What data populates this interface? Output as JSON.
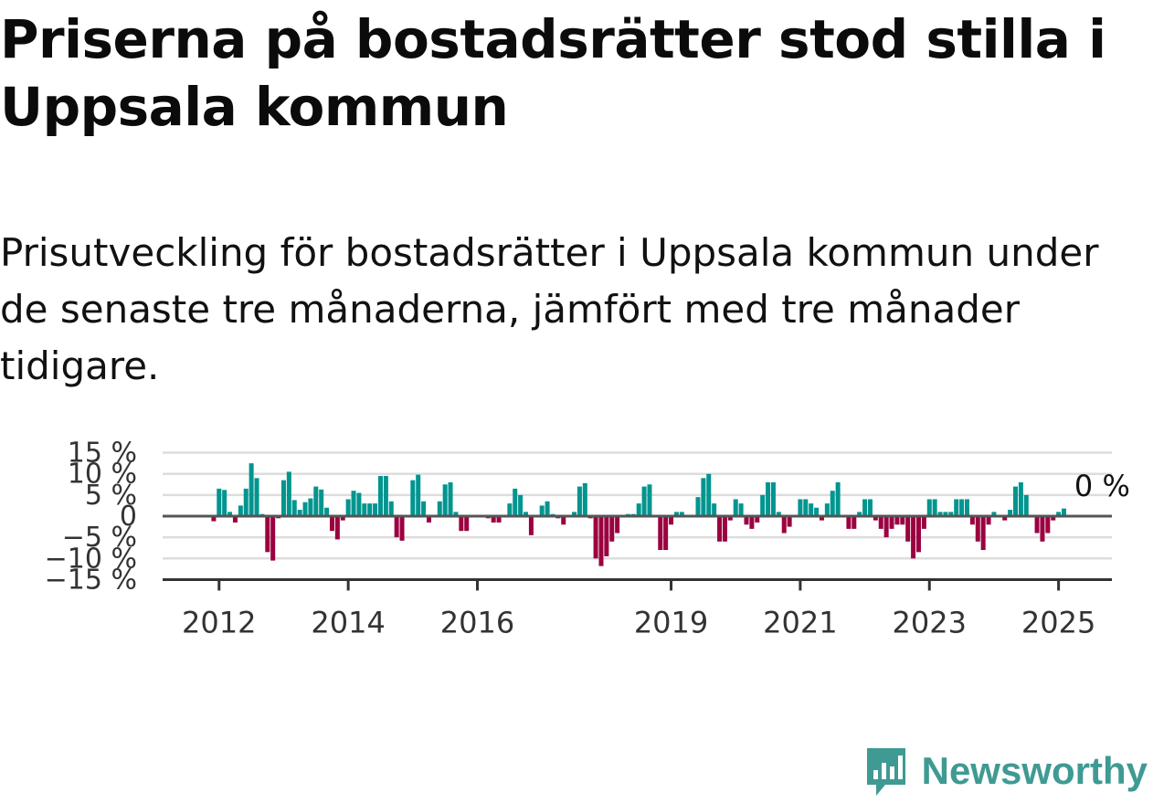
{
  "title": "Priserna på bostadsrätter stod stilla i Uppsala kommun",
  "subtitle": "Prisutveckling för bostadsrätter i Uppsala kommun under de senaste tre månaderna, jämfört med tre månader tidigare.",
  "brand": {
    "name": "Newsworthy",
    "icon": "bar-chart-speech-bubble-icon"
  },
  "colors": {
    "positive": "#00958f",
    "negative": "#9b0040",
    "zero_line": "#555555",
    "grid": "#dddddd",
    "brand": "#3f9a93"
  },
  "chart_data": {
    "type": "bar",
    "ylim": [
      -15,
      15
    ],
    "y_ticks": [
      15,
      10,
      5,
      0,
      -5,
      -10,
      -15
    ],
    "y_tick_labels": [
      "15 %",
      "10 %",
      "5 %",
      "0",
      "−5 %",
      "−10 %",
      "−15 %"
    ],
    "x_ticks": [
      {
        "label": "2012",
        "date": "2012-01"
      },
      {
        "label": "2014",
        "date": "2014-01"
      },
      {
        "label": "2016",
        "date": "2016-01"
      },
      {
        "label": "2019",
        "date": "2019-01"
      },
      {
        "label": "2021",
        "date": "2021-01"
      },
      {
        "label": "2023",
        "date": "2023-01"
      },
      {
        "label": "2025",
        "date": "2025-01"
      }
    ],
    "annotation": {
      "label": "0 %",
      "date": "2025-03"
    },
    "grid": true,
    "start": "2011-11",
    "months": [
      "2011-11",
      "2011-12",
      "2012-01",
      "2012-02",
      "2012-03",
      "2012-04",
      "2012-05",
      "2012-06",
      "2012-07",
      "2012-08",
      "2012-09",
      "2012-10",
      "2012-11",
      "2012-12",
      "2013-01",
      "2013-02",
      "2013-03",
      "2013-04",
      "2013-05",
      "2013-06",
      "2013-07",
      "2013-08",
      "2013-09",
      "2013-10",
      "2013-11",
      "2013-12",
      "2014-01",
      "2014-02",
      "2014-03",
      "2014-04",
      "2014-05",
      "2014-06",
      "2014-07",
      "2014-08",
      "2014-09",
      "2014-10",
      "2014-11",
      "2014-12",
      "2015-01",
      "2015-02",
      "2015-03",
      "2015-04",
      "2015-05",
      "2015-06",
      "2015-07",
      "2015-08",
      "2015-09",
      "2015-10",
      "2015-11",
      "2015-12",
      "2016-01",
      "2016-02",
      "2016-03",
      "2016-04",
      "2016-05",
      "2016-06",
      "2016-07",
      "2016-08",
      "2016-09",
      "2016-10",
      "2016-11",
      "2016-12",
      "2017-01",
      "2017-02",
      "2017-03",
      "2017-04",
      "2017-05",
      "2017-06",
      "2017-07",
      "2017-08",
      "2017-09",
      "2017-10",
      "2017-11",
      "2017-12",
      "2018-01",
      "2018-02",
      "2018-03",
      "2018-04",
      "2018-05",
      "2018-06",
      "2018-07",
      "2018-08",
      "2018-09",
      "2018-10",
      "2018-11",
      "2018-12",
      "2019-01",
      "2019-02",
      "2019-03",
      "2019-04",
      "2019-05",
      "2019-06",
      "2019-07",
      "2019-08",
      "2019-09",
      "2019-10",
      "2019-11",
      "2019-12",
      "2020-01",
      "2020-02",
      "2020-03",
      "2020-04",
      "2020-05",
      "2020-06",
      "2020-07",
      "2020-08",
      "2020-09",
      "2020-10",
      "2020-11",
      "2020-12",
      "2021-01",
      "2021-02",
      "2021-03",
      "2021-04",
      "2021-05",
      "2021-06",
      "2021-07",
      "2021-08",
      "2021-09",
      "2021-10",
      "2021-11",
      "2021-12",
      "2022-01",
      "2022-02",
      "2022-03",
      "2022-04",
      "2022-05",
      "2022-06",
      "2022-07",
      "2022-08",
      "2022-09",
      "2022-10",
      "2022-11",
      "2022-12",
      "2023-01",
      "2023-02",
      "2023-03",
      "2023-04",
      "2023-05",
      "2023-06",
      "2023-07",
      "2023-08",
      "2023-09",
      "2023-10",
      "2023-11",
      "2023-12",
      "2024-01",
      "2024-02",
      "2024-03",
      "2024-04",
      "2024-05",
      "2024-06",
      "2024-07",
      "2024-08",
      "2024-09",
      "2024-10",
      "2024-11",
      "2024-12",
      "2025-01",
      "2025-02",
      "2025-03"
    ],
    "values": [
      0,
      -1.2,
      6.5,
      6.2,
      1.0,
      -1.5,
      2.5,
      6.5,
      12.5,
      9.0,
      0.5,
      -8.5,
      -10.5,
      -0.5,
      8.5,
      10.5,
      3.8,
      1.5,
      3.3,
      4.2,
      7.0,
      6.3,
      2.0,
      -3.5,
      -5.5,
      -1.0,
      4.0,
      6.0,
      5.5,
      3.0,
      3.0,
      3.0,
      9.5,
      9.5,
      3.5,
      -5.0,
      -5.8,
      0,
      8.5,
      9.8,
      3.5,
      -1.5,
      0,
      3.5,
      7.5,
      8.0,
      1.0,
      -3.5,
      -3.5,
      0,
      0,
      0,
      -0.5,
      -1.5,
      -1.5,
      0,
      3.0,
      6.5,
      5.0,
      1.0,
      -4.5,
      0,
      2.5,
      3.5,
      0.5,
      -0.5,
      -2.0,
      0,
      1.0,
      7.0,
      7.8,
      -0.5,
      -10.0,
      -11.8,
      -9.5,
      -6.0,
      -4.0,
      0,
      0.5,
      0.5,
      3.0,
      7.0,
      7.5,
      0,
      -8.0,
      -8.0,
      -2.0,
      1.0,
      1.0,
      0,
      0,
      4.5,
      9.0,
      10.0,
      3.0,
      -6.0,
      -6.0,
      -1.0,
      4.0,
      3.0,
      -2.0,
      -3.0,
      -1.5,
      5.0,
      8.0,
      8.0,
      1.0,
      -4.0,
      -2.5,
      0,
      4.0,
      4.0,
      3.0,
      2.0,
      -1.0,
      3.0,
      6.0,
      8.0,
      0,
      -3.0,
      -3.0,
      1.0,
      4.0,
      4.0,
      -1.0,
      -3.0,
      -5.0,
      -3.0,
      -2.0,
      -2.0,
      -6.0,
      -10.0,
      -8.5,
      -3.0,
      4.0,
      4.0,
      1.0,
      1.0,
      1.0,
      4.0,
      4.0,
      4.0,
      -2.0,
      -6.0,
      -8.0,
      -2.0,
      1.0,
      0,
      -1.0,
      1.5,
      7.0,
      8.0,
      5.0,
      0,
      -4.0,
      -6.0,
      -4.0,
      -1.0,
      1.0,
      1.8,
      0.3
    ]
  }
}
